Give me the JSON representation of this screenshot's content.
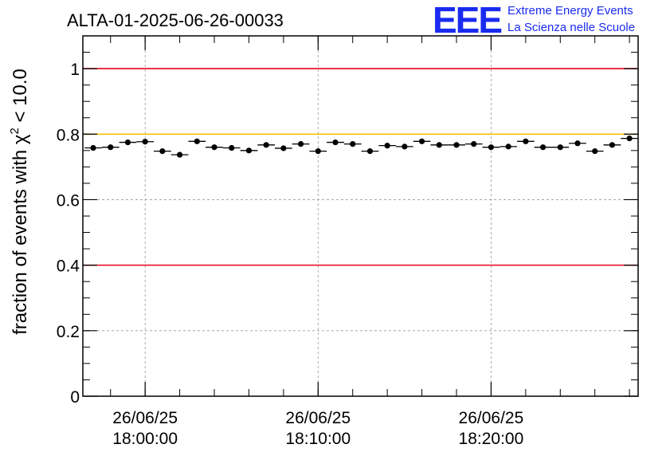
{
  "chart_data": {
    "type": "scatter",
    "title": "ALTA-01-2025-06-26-00033",
    "ylabel": "fraction of events with χ",
    "ylabel_sup": "2",
    "ylabel_tail": " < 10.0",
    "xlabel": "",
    "ylim": [
      0,
      1.1
    ],
    "xlim_minutes": [
      -3.6,
      28.5
    ],
    "yticks": [
      {
        "value": 0,
        "label": "0"
      },
      {
        "value": 0.2,
        "label": "0.2"
      },
      {
        "value": 0.4,
        "label": "0.4"
      },
      {
        "value": 0.6,
        "label": "0.6"
      },
      {
        "value": 0.8,
        "label": "0.8"
      },
      {
        "value": 1,
        "label": "1"
      }
    ],
    "xticks": [
      {
        "minutes": 0,
        "date": "26/06/25",
        "time": "18:00:00"
      },
      {
        "minutes": 10,
        "date": "26/06/25",
        "time": "18:10:00"
      },
      {
        "minutes": 20,
        "date": "26/06/25",
        "time": "18:20:00"
      }
    ],
    "grid": true,
    "reference_lines": [
      {
        "y": 1.0,
        "color": "#e8001c"
      },
      {
        "y": 0.8,
        "color": "#f5c000"
      },
      {
        "y": 0.4,
        "color": "#e8001c"
      }
    ],
    "bin_width_minutes": 1,
    "x": [
      -3,
      -2,
      -1,
      0,
      1,
      2,
      3,
      4,
      5,
      6,
      7,
      8,
      9,
      10,
      11,
      12,
      13,
      14,
      15,
      16,
      17,
      18,
      19,
      20,
      21,
      22,
      23,
      24,
      25,
      26,
      27,
      28
    ],
    "values": [
      0.758,
      0.76,
      0.775,
      0.777,
      0.748,
      0.737,
      0.778,
      0.76,
      0.758,
      0.75,
      0.767,
      0.757,
      0.77,
      0.748,
      0.775,
      0.77,
      0.748,
      0.765,
      0.762,
      0.778,
      0.767,
      0.767,
      0.77,
      0.76,
      0.762,
      0.778,
      0.76,
      0.76,
      0.772,
      0.748,
      0.767,
      0.787
    ],
    "error": 0.006,
    "marker_color": "#000000"
  },
  "logo": {
    "mark": "EEE",
    "line1": "Extreme Energy Events",
    "line2": "La Scienza nelle Scuole"
  }
}
